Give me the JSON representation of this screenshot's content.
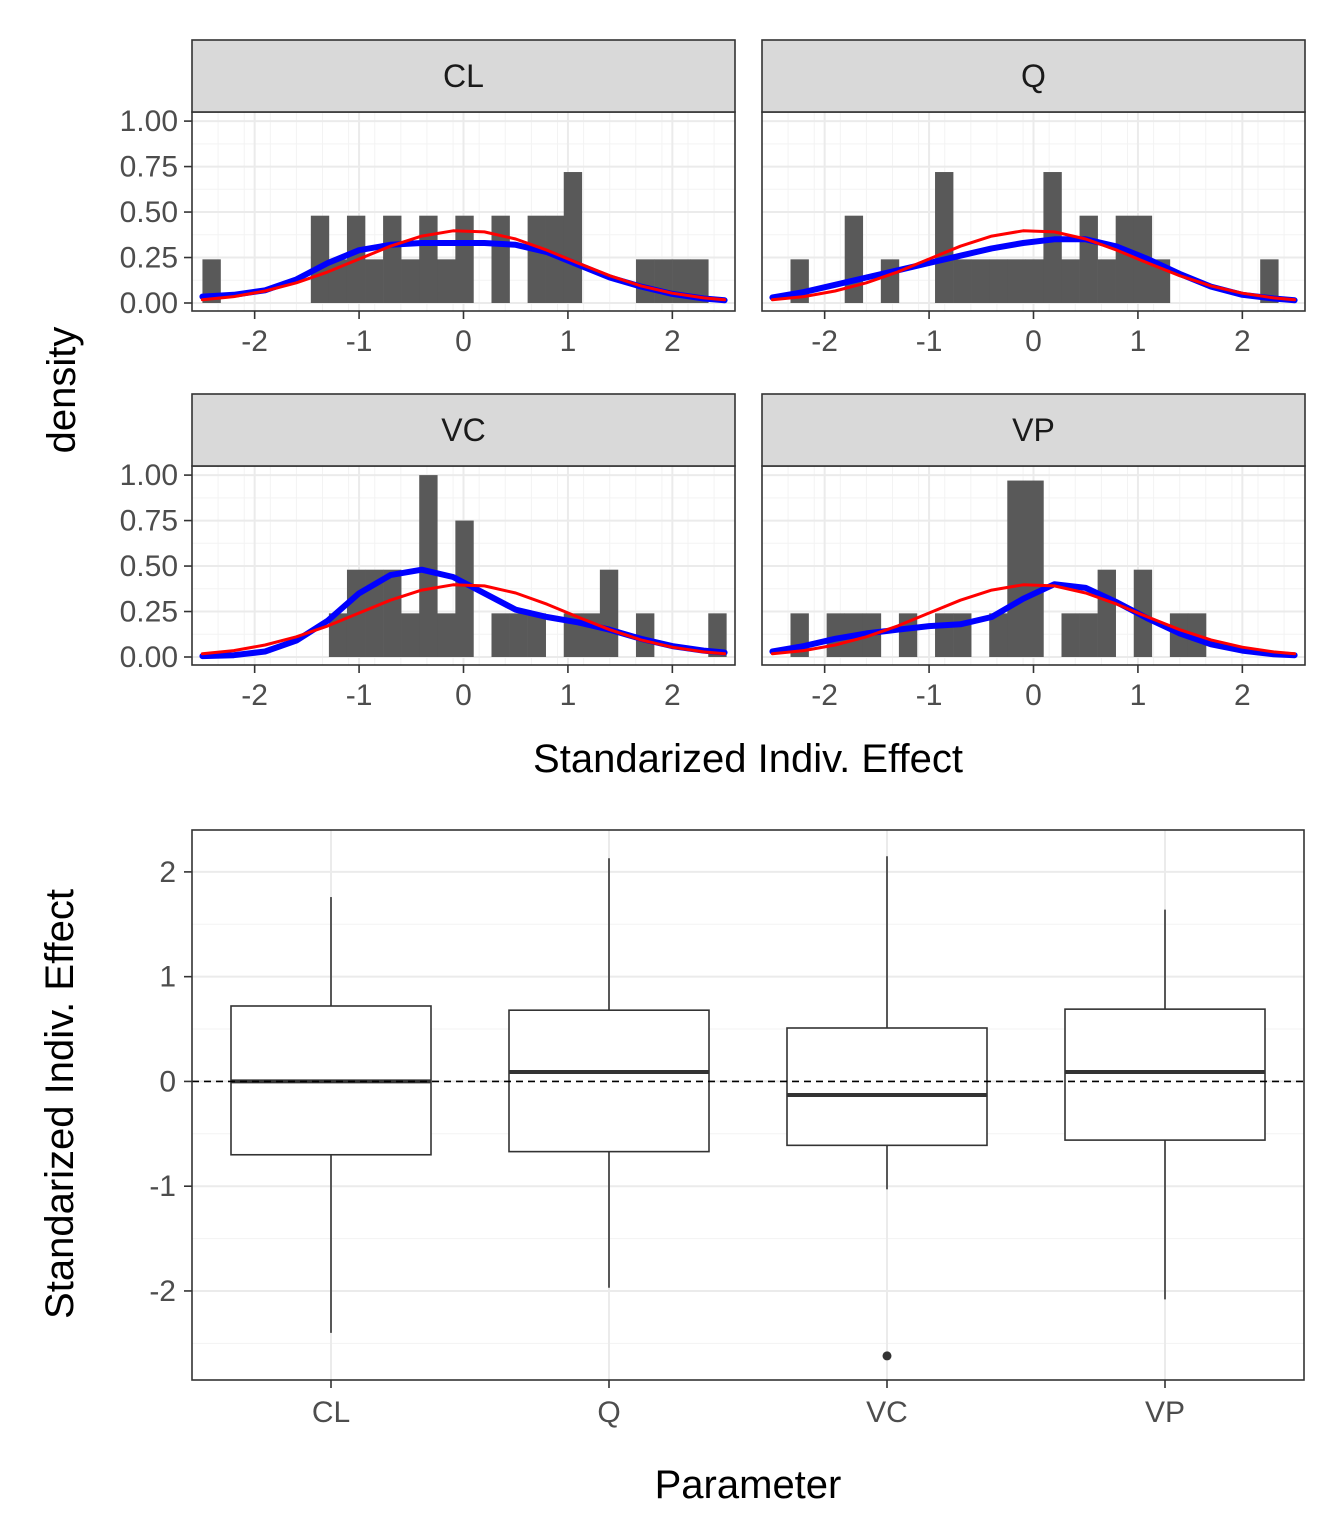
{
  "colors": {
    "empirical_density": "#0000ff",
    "normal_density": "#ff0000",
    "histogram_fill": "#595959",
    "strip_background": "#d9d9d9"
  },
  "chart_data": [
    {
      "type": "histogram",
      "facets": [
        "CL",
        "Q",
        "VC",
        "VP"
      ],
      "xlabel": "Standarized Indiv. Effect",
      "ylabel": "density",
      "xlim": [
        -2.6,
        2.6
      ],
      "ylim": [
        0,
        1.05
      ],
      "x_ticks": [
        -2,
        -1,
        0,
        1,
        2
      ],
      "y_ticks": [
        0.0,
        0.25,
        0.5,
        0.75,
        1.0
      ],
      "y_tick_labels": [
        "0.00",
        "0.25",
        "0.50",
        "0.75",
        "1.00"
      ],
      "bin_width": 0.173,
      "bin_start": -2.5,
      "panels": [
        {
          "name": "CL",
          "densities": [
            0.24,
            0,
            0,
            0,
            0,
            0,
            0.48,
            0.24,
            0.48,
            0.24,
            0.48,
            0.24,
            0.48,
            0.24,
            0.48,
            0,
            0.48,
            0,
            0.48,
            0.48,
            0.72,
            0,
            0,
            0,
            0.24,
            0.24,
            0.24,
            0.24,
            0,
            0
          ],
          "kde": {
            "x": [
              -2.5,
              -2.2,
              -1.9,
              -1.6,
              -1.3,
              -1.0,
              -0.7,
              -0.4,
              -0.1,
              0.2,
              0.5,
              0.8,
              1.1,
              1.4,
              1.7,
              2.0,
              2.3,
              2.5
            ],
            "y": [
              0.035,
              0.045,
              0.07,
              0.13,
              0.22,
              0.29,
              0.32,
              0.33,
              0.33,
              0.33,
              0.32,
              0.28,
              0.21,
              0.14,
              0.09,
              0.05,
              0.025,
              0.015
            ]
          }
        },
        {
          "name": "Q",
          "densities": [
            0,
            0.24,
            0,
            0,
            0.48,
            0,
            0.24,
            0,
            0,
            0.72,
            0.24,
            0.24,
            0.24,
            0.24,
            0.24,
            0.72,
            0.24,
            0.48,
            0.24,
            0.48,
            0.48,
            0.24,
            0,
            0,
            0,
            0,
            0,
            0.24,
            0,
            0
          ],
          "kde": {
            "x": [
              -2.5,
              -2.2,
              -1.9,
              -1.6,
              -1.3,
              -1.0,
              -0.7,
              -0.4,
              -0.1,
              0.2,
              0.5,
              0.8,
              1.1,
              1.4,
              1.7,
              2.0,
              2.3,
              2.5
            ],
            "y": [
              0.03,
              0.06,
              0.1,
              0.14,
              0.18,
              0.22,
              0.26,
              0.3,
              0.33,
              0.35,
              0.35,
              0.31,
              0.24,
              0.16,
              0.09,
              0.045,
              0.025,
              0.015
            ]
          }
        },
        {
          "name": "VC",
          "densities": [
            0,
            0,
            0,
            0,
            0,
            0,
            0,
            0.24,
            0.48,
            0.48,
            0.48,
            0.24,
            1.0,
            0.24,
            0.75,
            0,
            0.24,
            0.24,
            0.24,
            0,
            0.24,
            0.24,
            0.48,
            0,
            0.24,
            0,
            0,
            0,
            0.24,
            0
          ],
          "kde": {
            "x": [
              -2.5,
              -2.2,
              -1.9,
              -1.6,
              -1.3,
              -1.0,
              -0.7,
              -0.4,
              -0.1,
              0.2,
              0.5,
              0.8,
              1.1,
              1.4,
              1.7,
              2.0,
              2.3,
              2.5
            ],
            "y": [
              0.005,
              0.01,
              0.03,
              0.09,
              0.2,
              0.35,
              0.45,
              0.48,
              0.44,
              0.35,
              0.26,
              0.22,
              0.19,
              0.15,
              0.1,
              0.06,
              0.035,
              0.025
            ]
          }
        },
        {
          "name": "VP",
          "densities": [
            0,
            0.24,
            0,
            0.24,
            0.24,
            0.24,
            0,
            0.24,
            0,
            0.24,
            0.24,
            0,
            0.24,
            0.97,
            0.97,
            0,
            0.24,
            0.24,
            0.48,
            0,
            0.48,
            0,
            0.24,
            0.24,
            0,
            0,
            0,
            0,
            0,
            0
          ],
          "kde": {
            "x": [
              -2.5,
              -2.2,
              -1.9,
              -1.6,
              -1.3,
              -1.0,
              -0.7,
              -0.4,
              -0.1,
              0.2,
              0.5,
              0.8,
              1.1,
              1.4,
              1.7,
              2.0,
              2.3,
              2.5
            ],
            "y": [
              0.03,
              0.06,
              0.1,
              0.13,
              0.15,
              0.17,
              0.18,
              0.22,
              0.32,
              0.4,
              0.38,
              0.3,
              0.21,
              0.13,
              0.07,
              0.035,
              0.015,
              0.01
            ]
          }
        }
      ],
      "reference": {
        "x": [
          -2.5,
          -2.2,
          -1.9,
          -1.6,
          -1.3,
          -1.0,
          -0.7,
          -0.4,
          -0.1,
          0.2,
          0.5,
          0.8,
          1.1,
          1.4,
          1.7,
          2.0,
          2.3,
          2.5
        ],
        "y": [
          0.018,
          0.035,
          0.066,
          0.111,
          0.171,
          0.242,
          0.312,
          0.368,
          0.397,
          0.391,
          0.352,
          0.29,
          0.218,
          0.15,
          0.094,
          0.054,
          0.028,
          0.018
        ]
      }
    },
    {
      "type": "box",
      "xlabel": "Parameter",
      "ylabel": "Standarized Indiv. Effect",
      "categories": [
        "CL",
        "Q",
        "VC",
        "VP"
      ],
      "ylim": [
        -2.85,
        2.4
      ],
      "y_ticks": [
        -2,
        -1,
        0,
        1,
        2
      ],
      "reference_line": 0,
      "boxes": [
        {
          "name": "CL",
          "min": -2.4,
          "q1": -0.7,
          "median": 0.0,
          "q3": 0.72,
          "max": 1.76,
          "outliers": []
        },
        {
          "name": "Q",
          "min": -1.97,
          "q1": -0.67,
          "median": 0.09,
          "q3": 0.68,
          "max": 2.13,
          "outliers": []
        },
        {
          "name": "VC",
          "min": -1.03,
          "q1": -0.61,
          "median": -0.13,
          "q3": 0.51,
          "max": 2.15,
          "outliers": [
            -2.62
          ]
        },
        {
          "name": "VP",
          "min": -2.08,
          "q1": -0.56,
          "median": 0.09,
          "q3": 0.69,
          "max": 1.64,
          "outliers": []
        }
      ]
    }
  ]
}
